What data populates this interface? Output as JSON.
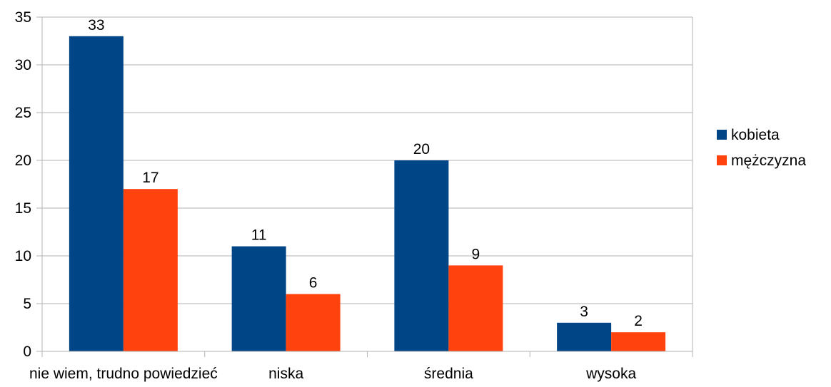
{
  "chart_data": {
    "type": "bar",
    "categories": [
      "nie wiem, trudno powiedzieć",
      "niska",
      "średnia",
      "wysoka"
    ],
    "series": [
      {
        "name": "kobieta",
        "values": [
          33,
          11,
          20,
          3
        ],
        "color": "#004586"
      },
      {
        "name": "mężczyzna",
        "values": [
          17,
          6,
          9,
          2
        ],
        "color": "#ff420e"
      }
    ],
    "ylim": [
      0,
      35
    ],
    "yticks": [
      0,
      5,
      10,
      15,
      20,
      25,
      30,
      35
    ],
    "grid": true,
    "legend_position": "right",
    "data_labels": true,
    "title": "",
    "xlabel": "",
    "ylabel": ""
  }
}
